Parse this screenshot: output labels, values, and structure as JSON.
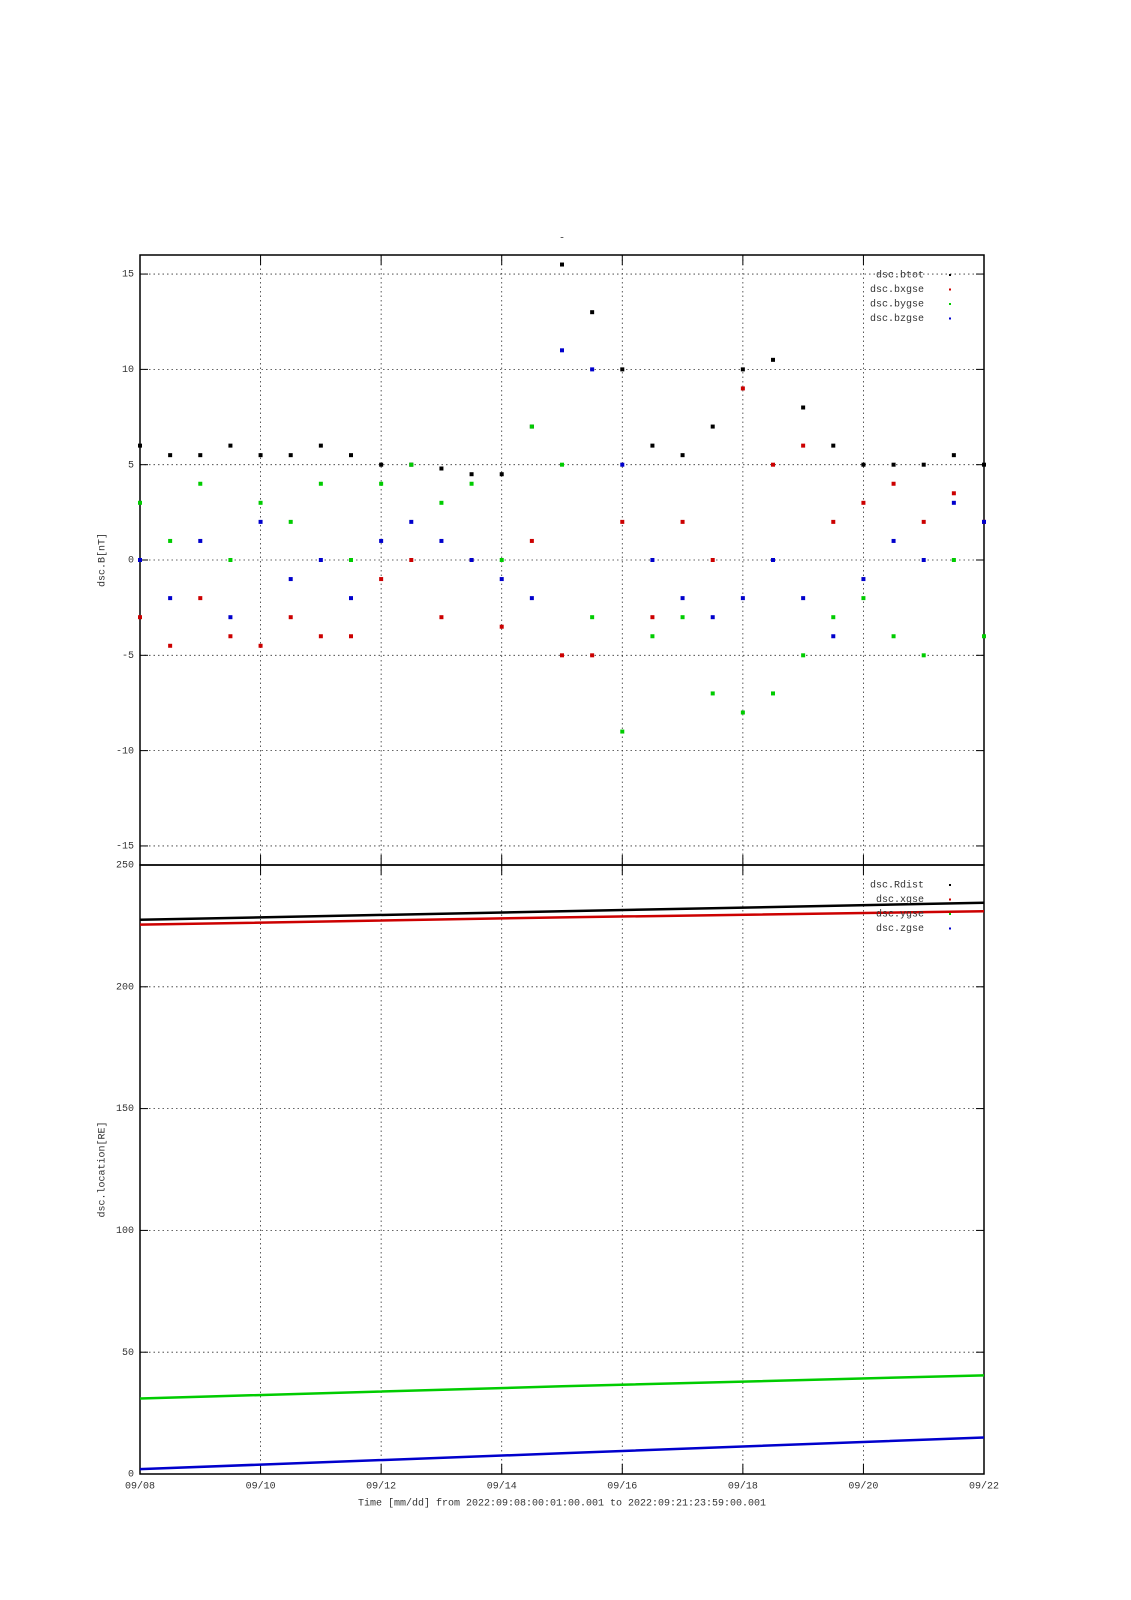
{
  "chart_data": [
    {
      "type": "scatter",
      "title": "-",
      "ylabel": "dsc.B[nT]",
      "grid": true,
      "legend": "top right",
      "xlim": [
        8,
        22
      ],
      "xticks": [
        {
          "value": 8,
          "label": "09/08"
        },
        {
          "value": 10,
          "label": "09/10"
        },
        {
          "value": 12,
          "label": "09/12"
        },
        {
          "value": 14,
          "label": "09/14"
        },
        {
          "value": 16,
          "label": "09/16"
        },
        {
          "value": 18,
          "label": "09/18"
        },
        {
          "value": 20,
          "label": "09/20"
        },
        {
          "value": 22,
          "label": "09/22"
        }
      ],
      "ylim": [
        -16,
        16
      ],
      "yticks": [
        -15,
        -10,
        -5,
        0,
        5,
        10,
        15
      ],
      "x": [
        8,
        8.5,
        9,
        9.5,
        10,
        10.5,
        11,
        11.5,
        12,
        12.5,
        13,
        13.5,
        14,
        14.5,
        15,
        15.5,
        16,
        16.5,
        17,
        17.5,
        18,
        18.5,
        19,
        19.5,
        20,
        20.5,
        21,
        21.5,
        22
      ],
      "series": [
        {
          "name": "dsc.btot",
          "color": "#000000",
          "values": [
            6,
            5.5,
            5.5,
            6,
            5.5,
            5.5,
            6,
            5.5,
            5,
            5,
            4.8,
            4.5,
            4.5,
            7,
            15.5,
            13,
            10,
            6,
            5.5,
            7,
            10,
            10.5,
            8,
            6,
            5,
            5,
            5,
            5.5,
            5
          ]
        },
        {
          "name": "dsc.bxgse",
          "color": "#cc0000",
          "values": [
            -3,
            -4.5,
            -2,
            -4,
            -4.5,
            -3,
            -4,
            -4,
            -1,
            0,
            -3,
            0,
            -3.5,
            1,
            -5,
            -5,
            2,
            -3,
            2,
            0,
            9,
            5,
            6,
            2,
            3,
            4,
            2,
            3.5,
            2
          ]
        },
        {
          "name": "dsc.bygse",
          "color": "#00cc00",
          "values": [
            3,
            1,
            4,
            0,
            3,
            2,
            4,
            0,
            4,
            5,
            3,
            4,
            0,
            7,
            5,
            -3,
            -9,
            -4,
            -3,
            -7,
            -8,
            -7,
            -5,
            -3,
            -2,
            -4,
            -5,
            0,
            -4
          ]
        },
        {
          "name": "dsc.bzgse",
          "color": "#0000cc",
          "values": [
            0,
            -2,
            1,
            -3,
            2,
            -1,
            0,
            -2,
            1,
            2,
            1,
            0,
            -1,
            -2,
            11,
            10,
            5,
            0,
            -2,
            -3,
            -2,
            0,
            -2,
            -4,
            -1,
            1,
            0,
            3,
            2
          ]
        }
      ]
    },
    {
      "type": "line",
      "ylabel": "dsc.location[RE]",
      "xlabel": "Time [mm/dd]  from 2022:09:08:00:01:00.001  to  2022:09:21:23:59:00.001",
      "grid": true,
      "legend": "top right",
      "xlim": [
        8,
        22
      ],
      "xticks": [
        {
          "value": 8,
          "label": "09/08"
        },
        {
          "value": 10,
          "label": "09/10"
        },
        {
          "value": 12,
          "label": "09/12"
        },
        {
          "value": 14,
          "label": "09/14"
        },
        {
          "value": 16,
          "label": "09/16"
        },
        {
          "value": 18,
          "label": "09/18"
        },
        {
          "value": 20,
          "label": "09/20"
        },
        {
          "value": 22,
          "label": "09/22"
        }
      ],
      "ylim": [
        0,
        250
      ],
      "yticks": [
        0,
        50,
        100,
        150,
        200,
        250
      ],
      "x": [
        8,
        15,
        22
      ],
      "series": [
        {
          "name": "dsc.Rdist",
          "color": "#000000",
          "values": [
            227.5,
            231,
            234.5
          ]
        },
        {
          "name": "dsc.xgse",
          "color": "#cc0000",
          "values": [
            225.5,
            228.5,
            231
          ]
        },
        {
          "name": "dsc.ygse",
          "color": "#00cc00",
          "values": [
            31,
            36,
            40.5
          ]
        },
        {
          "name": "dsc.zgse",
          "color": "#0000cc",
          "values": [
            2,
            8.5,
            15
          ]
        }
      ]
    }
  ]
}
